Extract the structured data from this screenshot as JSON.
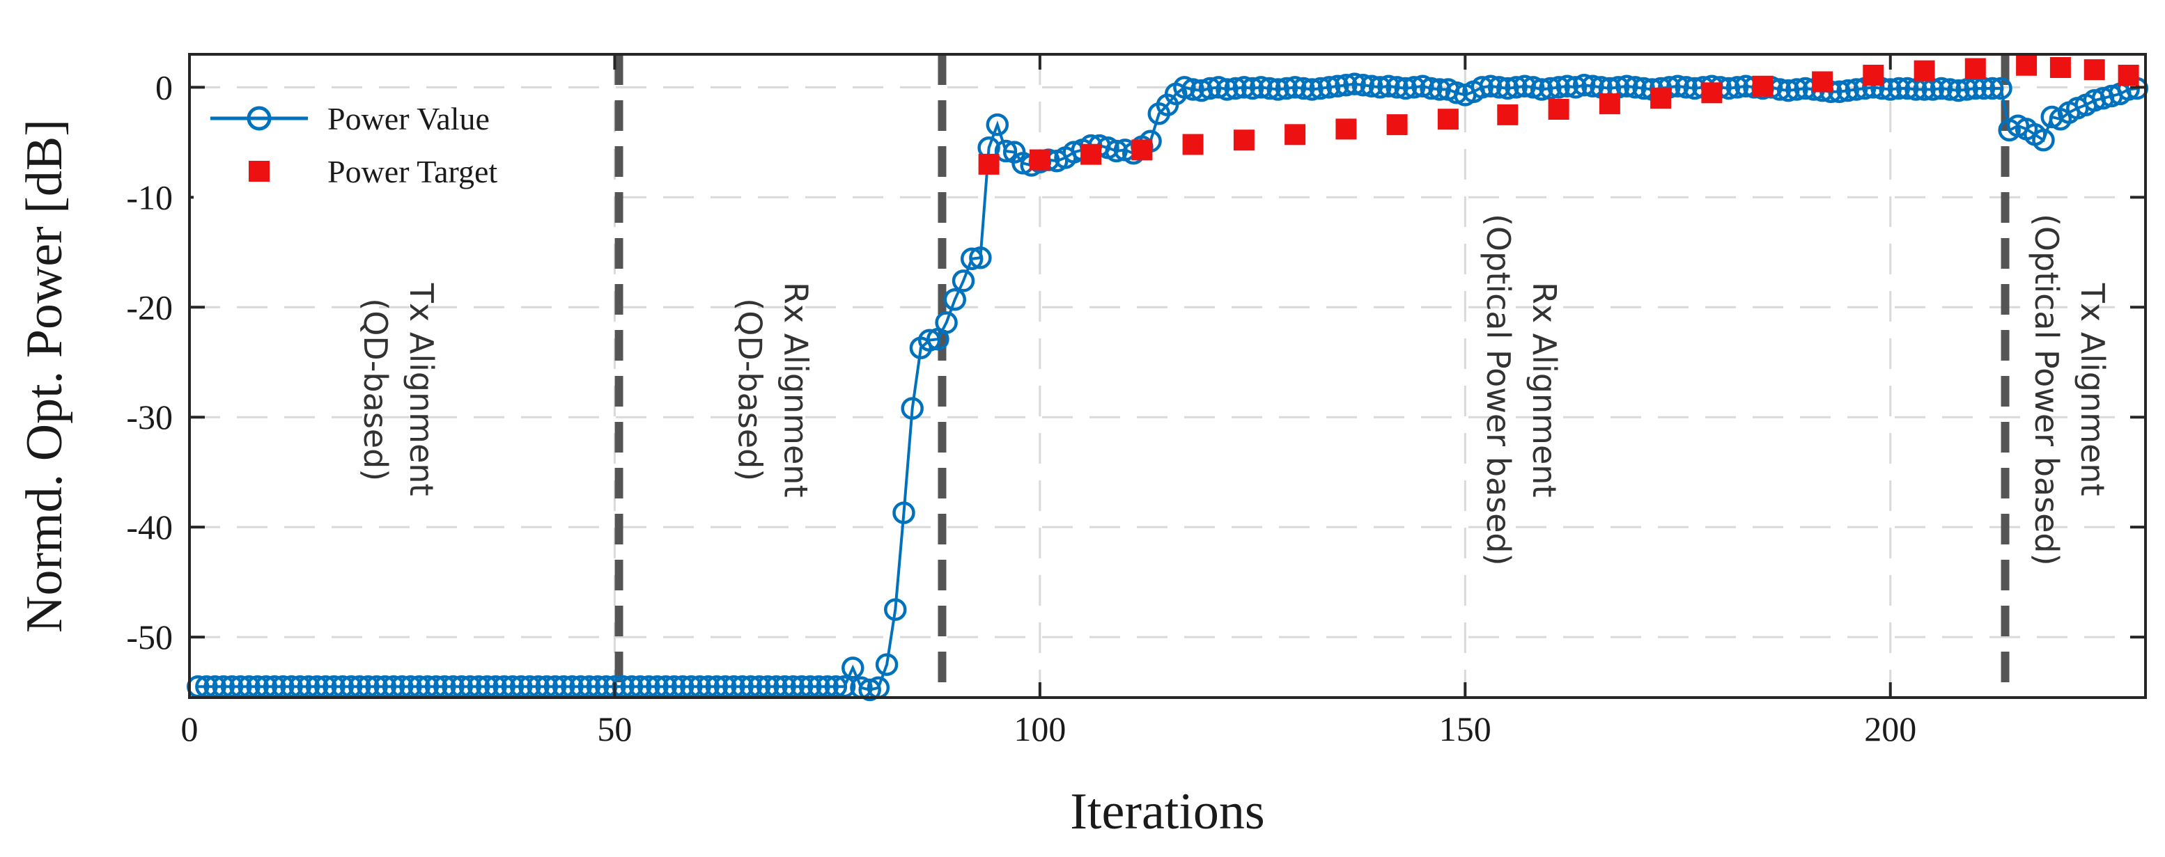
{
  "chart_data": {
    "type": "line",
    "title": "",
    "xlabel": "Iterations",
    "ylabel": "Normd. Opt. Power [dB]",
    "xlim": [
      0,
      230
    ],
    "ylim": [
      -55.5,
      3
    ],
    "xticks": [
      0,
      50,
      100,
      150,
      200
    ],
    "yticks": [
      0,
      -10,
      -20,
      -30,
      -40,
      -50
    ],
    "grid": true,
    "legend_position": "top-left",
    "colors": {
      "power_value": "#0072BD",
      "power_target": "#EE1111",
      "phase_line": "#555555",
      "grid": "#d9d9d9",
      "axis": "#262626"
    },
    "phase_boundaries": [
      50.5,
      88.5,
      213.5
    ],
    "phase_labels": [
      {
        "x": 25,
        "lines": [
          "Tx Alignment",
          "(QD-based)"
        ]
      },
      {
        "x": 69,
        "lines": [
          "Rx Alignment",
          "(QD-based)"
        ]
      },
      {
        "x": 157,
        "lines": [
          "Rx Alignment",
          "(Optical Power based)"
        ]
      },
      {
        "x": 221.5,
        "lines": [
          "Tx Alignment",
          "(Optical Power based)"
        ]
      }
    ],
    "series": [
      {
        "name": "Power Value",
        "style": "line-circle",
        "points": [
          [
            1,
            -54.5
          ],
          [
            2,
            -54.5
          ],
          [
            3,
            -54.5
          ],
          [
            4,
            -54.5
          ],
          [
            5,
            -54.5
          ],
          [
            6,
            -54.5
          ],
          [
            7,
            -54.5
          ],
          [
            8,
            -54.5
          ],
          [
            9,
            -54.5
          ],
          [
            10,
            -54.5
          ],
          [
            11,
            -54.5
          ],
          [
            12,
            -54.5
          ],
          [
            13,
            -54.5
          ],
          [
            14,
            -54.5
          ],
          [
            15,
            -54.5
          ],
          [
            16,
            -54.5
          ],
          [
            17,
            -54.5
          ],
          [
            18,
            -54.5
          ],
          [
            19,
            -54.5
          ],
          [
            20,
            -54.5
          ],
          [
            21,
            -54.5
          ],
          [
            22,
            -54.5
          ],
          [
            23,
            -54.5
          ],
          [
            24,
            -54.5
          ],
          [
            25,
            -54.5
          ],
          [
            26,
            -54.5
          ],
          [
            27,
            -54.5
          ],
          [
            28,
            -54.5
          ],
          [
            29,
            -54.5
          ],
          [
            30,
            -54.5
          ],
          [
            31,
            -54.5
          ],
          [
            32,
            -54.5
          ],
          [
            33,
            -54.5
          ],
          [
            34,
            -54.5
          ],
          [
            35,
            -54.5
          ],
          [
            36,
            -54.5
          ],
          [
            37,
            -54.5
          ],
          [
            38,
            -54.5
          ],
          [
            39,
            -54.5
          ],
          [
            40,
            -54.5
          ],
          [
            41,
            -54.5
          ],
          [
            42,
            -54.5
          ],
          [
            43,
            -54.5
          ],
          [
            44,
            -54.5
          ],
          [
            45,
            -54.5
          ],
          [
            46,
            -54.5
          ],
          [
            47,
            -54.5
          ],
          [
            48,
            -54.5
          ],
          [
            49,
            -54.5
          ],
          [
            50,
            -54.5
          ],
          [
            51,
            -54.5
          ],
          [
            52,
            -54.5
          ],
          [
            53,
            -54.5
          ],
          [
            54,
            -54.5
          ],
          [
            55,
            -54.5
          ],
          [
            56,
            -54.5
          ],
          [
            57,
            -54.5
          ],
          [
            58,
            -54.5
          ],
          [
            59,
            -54.5
          ],
          [
            60,
            -54.5
          ],
          [
            61,
            -54.5
          ],
          [
            62,
            -54.5
          ],
          [
            63,
            -54.5
          ],
          [
            64,
            -54.5
          ],
          [
            65,
            -54.5
          ],
          [
            66,
            -54.5
          ],
          [
            67,
            -54.5
          ],
          [
            68,
            -54.5
          ],
          [
            69,
            -54.5
          ],
          [
            70,
            -54.5
          ],
          [
            71,
            -54.5
          ],
          [
            72,
            -54.5
          ],
          [
            73,
            -54.5
          ],
          [
            74,
            -54.5
          ],
          [
            75,
            -54.5
          ],
          [
            76,
            -54.5
          ],
          [
            77,
            -54.5
          ],
          [
            78,
            -52.8
          ],
          [
            79,
            -54.6
          ],
          [
            80,
            -54.8
          ],
          [
            81,
            -54.6
          ],
          [
            82,
            -52.5
          ],
          [
            83,
            -47.5
          ],
          [
            84,
            -38.7
          ],
          [
            85,
            -29.2
          ],
          [
            86,
            -23.7
          ],
          [
            87,
            -23.0
          ],
          [
            88,
            -22.9
          ],
          [
            89,
            -21.4
          ],
          [
            90,
            -19.3
          ],
          [
            91,
            -17.6
          ],
          [
            92,
            -15.6
          ],
          [
            93,
            -15.5
          ],
          [
            94,
            -5.5
          ],
          [
            95,
            -3.4
          ],
          [
            96,
            -5.8
          ],
          [
            97,
            -5.9
          ],
          [
            98,
            -6.9
          ],
          [
            99,
            -7.1
          ],
          [
            100,
            -6.8
          ],
          [
            101,
            -6.6
          ],
          [
            102,
            -6.7
          ],
          [
            103,
            -6.4
          ],
          [
            104,
            -5.9
          ],
          [
            105,
            -5.7
          ],
          [
            106,
            -5.3
          ],
          [
            107,
            -5.3
          ],
          [
            108,
            -5.5
          ],
          [
            109,
            -5.8
          ],
          [
            110,
            -5.7
          ],
          [
            111,
            -6.0
          ],
          [
            112,
            -5.4
          ],
          [
            113,
            -4.9
          ],
          [
            114,
            -2.4
          ],
          [
            115,
            -1.6
          ],
          [
            116,
            -0.6
          ],
          [
            117,
            0.0
          ],
          [
            118,
            -0.2
          ],
          [
            119,
            -0.3
          ],
          [
            120,
            -0.1
          ],
          [
            121,
            0.0
          ],
          [
            122,
            -0.2
          ],
          [
            123,
            -0.1
          ],
          [
            124,
            0.0
          ],
          [
            125,
            -0.1
          ],
          [
            126,
            0.0
          ],
          [
            127,
            -0.1
          ],
          [
            128,
            -0.2
          ],
          [
            129,
            -0.1
          ],
          [
            130,
            0.0
          ],
          [
            131,
            -0.1
          ],
          [
            132,
            -0.2
          ],
          [
            133,
            -0.1
          ],
          [
            134,
            0.0
          ],
          [
            135,
            0.1
          ],
          [
            136,
            0.2
          ],
          [
            137,
            0.3
          ],
          [
            138,
            0.2
          ],
          [
            139,
            0.1
          ],
          [
            140,
            0.0
          ],
          [
            141,
            0.1
          ],
          [
            142,
            0.0
          ],
          [
            143,
            -0.1
          ],
          [
            144,
            0.0
          ],
          [
            145,
            0.1
          ],
          [
            146,
            -0.1
          ],
          [
            147,
            -0.2
          ],
          [
            148,
            -0.2
          ],
          [
            149,
            -0.5
          ],
          [
            150,
            -0.7
          ],
          [
            151,
            -0.4
          ],
          [
            152,
            0.0
          ],
          [
            153,
            0.1
          ],
          [
            154,
            0.0
          ],
          [
            155,
            -0.1
          ],
          [
            156,
            0.0
          ],
          [
            157,
            0.1
          ],
          [
            158,
            0.0
          ],
          [
            159,
            -0.2
          ],
          [
            160,
            -0.1
          ],
          [
            161,
            0.0
          ],
          [
            162,
            0.1
          ],
          [
            163,
            0.0
          ],
          [
            164,
            0.2
          ],
          [
            165,
            0.1
          ],
          [
            166,
            0.0
          ],
          [
            167,
            -0.1
          ],
          [
            168,
            0.0
          ],
          [
            169,
            0.1
          ],
          [
            170,
            0.0
          ],
          [
            171,
            -0.1
          ],
          [
            172,
            -0.2
          ],
          [
            173,
            -0.1
          ],
          [
            174,
            0.0
          ],
          [
            175,
            0.1
          ],
          [
            176,
            0.0
          ],
          [
            177,
            -0.1
          ],
          [
            178,
            0.0
          ],
          [
            179,
            0.1
          ],
          [
            180,
            0.0
          ],
          [
            181,
            -0.1
          ],
          [
            182,
            0.0
          ],
          [
            183,
            0.1
          ],
          [
            184,
            0.0
          ],
          [
            185,
            -0.1
          ],
          [
            186,
            0.0
          ],
          [
            187,
            -0.2
          ],
          [
            188,
            -0.3
          ],
          [
            189,
            -0.2
          ],
          [
            190,
            -0.1
          ],
          [
            191,
            -0.2
          ],
          [
            192,
            -0.3
          ],
          [
            193,
            -0.4
          ],
          [
            194,
            -0.4
          ],
          [
            195,
            -0.3
          ],
          [
            196,
            -0.2
          ],
          [
            197,
            -0.1
          ],
          [
            198,
            0.0
          ],
          [
            199,
            -0.1
          ],
          [
            200,
            -0.2
          ],
          [
            201,
            -0.1
          ],
          [
            202,
            -0.1
          ],
          [
            203,
            -0.2
          ],
          [
            204,
            -0.2
          ],
          [
            205,
            -0.2
          ],
          [
            206,
            -0.1
          ],
          [
            207,
            -0.2
          ],
          [
            208,
            -0.3
          ],
          [
            209,
            -0.2
          ],
          [
            210,
            -0.1
          ],
          [
            211,
            -0.1
          ],
          [
            212,
            -0.1
          ],
          [
            213,
            -0.1
          ],
          [
            214,
            -3.9
          ],
          [
            215,
            -3.5
          ],
          [
            216,
            -3.8
          ],
          [
            217,
            -4.3
          ],
          [
            218,
            -4.8
          ],
          [
            219,
            -2.7
          ],
          [
            220,
            -2.9
          ],
          [
            221,
            -2.3
          ],
          [
            222,
            -1.9
          ],
          [
            223,
            -1.6
          ],
          [
            224,
            -1.2
          ],
          [
            225,
            -1.0
          ],
          [
            226,
            -0.8
          ],
          [
            227,
            -0.6
          ],
          [
            228,
            -0.2
          ],
          [
            229,
            -0.1
          ]
        ]
      },
      {
        "name": "Power Target",
        "style": "square",
        "points": [
          [
            94,
            -7.0
          ],
          [
            100,
            -6.6
          ],
          [
            106,
            -6.1
          ],
          [
            112,
            -5.7
          ],
          [
            118,
            -5.2
          ],
          [
            124,
            -4.8
          ],
          [
            130,
            -4.3
          ],
          [
            136,
            -3.8
          ],
          [
            142,
            -3.4
          ],
          [
            148,
            -2.9
          ],
          [
            155,
            -2.5
          ],
          [
            161,
            -2.0
          ],
          [
            167,
            -1.5
          ],
          [
            173,
            -1.0
          ],
          [
            179,
            -0.5
          ],
          [
            185,
            0.1
          ],
          [
            192,
            0.5
          ],
          [
            198,
            1.1
          ],
          [
            204,
            1.5
          ],
          [
            210,
            1.7
          ],
          [
            216,
            2.0
          ],
          [
            220,
            1.8
          ],
          [
            224,
            1.6
          ],
          [
            228,
            1.1
          ]
        ]
      }
    ]
  }
}
